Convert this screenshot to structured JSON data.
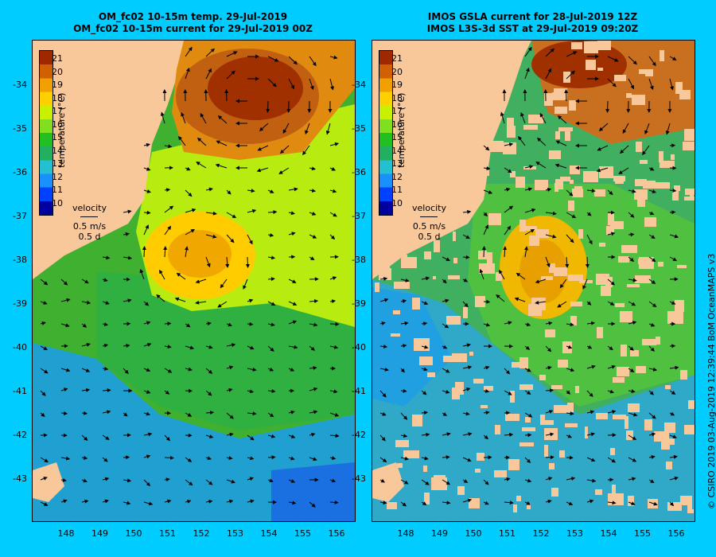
{
  "left_panel": {
    "title_line1": "OM_fc02 10-15m temp. 29-Jul-2019",
    "title_line2": "OM_fc02 10-15m current for 29-Jul-2019 00Z"
  },
  "right_panel": {
    "title_line1": "IMOS GSLA current for 28-Jul-2019 12Z",
    "title_line2": "IMOS L3S-3d SST at 29-Jul-2019 09:20Z"
  },
  "lat_ticks": [
    "-34",
    "-35",
    "-36",
    "-37",
    "-38",
    "-39",
    "-40",
    "-41",
    "-42",
    "-43"
  ],
  "lon_ticks": [
    "148",
    "149",
    "150",
    "151",
    "152",
    "153",
    "154",
    "155",
    "156"
  ],
  "colorbar": {
    "title": "temperature (°C)",
    "ticks": [
      "21",
      "20",
      "19",
      "18",
      "17",
      "16",
      "15",
      "14",
      "13",
      "12",
      "11",
      "10"
    ],
    "colors": [
      "#0000a0",
      "#0040ff",
      "#1a90ff",
      "#22c0d0",
      "#20b060",
      "#20c020",
      "#80e020",
      "#c8f000",
      "#ffd000",
      "#f0a000",
      "#d06000",
      "#a02800"
    ]
  },
  "velocity_legend": {
    "label": "velocity",
    "speed": "0.5 m/s",
    "duration": "0.5 d"
  },
  "copyright": "© CSIRO 2019   03-Aug-2019 12:39:44 BoM OceanMAPS v3",
  "colors": {
    "background": "#00ccff",
    "land": "#f8c89a"
  }
}
